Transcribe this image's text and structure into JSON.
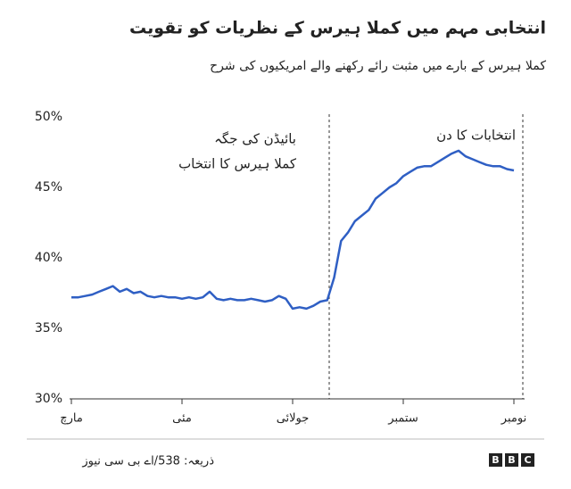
{
  "chart_data": {
    "type": "line",
    "title": "انتخابی مہم میں کملا ہیرس کے نظریات کو تقویت",
    "subtitle": "کملا ہیرس کے بارے میں مثبت رائے رکھنے والے امریکیوں کی شرح",
    "annotations": [
      "بائیڈن کی جگہ",
      "کملا ہیرس کا انتخاب",
      "انتخابات کا دن"
    ],
    "source": "ذریعہ: 538/اے بی سی نیوز",
    "logo": [
      "B",
      "B",
      "C"
    ],
    "categories": [
      "مارچ",
      null,
      null,
      null,
      null,
      null,
      null,
      null,
      null,
      null,
      null,
      null,
      null,
      null,
      null,
      null,
      "مئی",
      null,
      null,
      null,
      null,
      null,
      null,
      null,
      null,
      null,
      null,
      null,
      null,
      null,
      null,
      null,
      "جولائی",
      null,
      null,
      null,
      null,
      null,
      null,
      null,
      null,
      null,
      null,
      null,
      null,
      null,
      null,
      null,
      "ستمبر",
      null,
      null,
      null,
      null,
      null,
      null,
      null,
      null,
      null,
      null,
      null,
      null,
      null,
      null,
      null,
      "نومبر"
    ],
    "series": [
      {
        "color": "#2f5fc4",
        "values": [
          37.2,
          37.2,
          37.3,
          37.4,
          37.6,
          37.8,
          38.0,
          37.6,
          37.8,
          37.5,
          37.6,
          37.3,
          37.2,
          37.3,
          37.2,
          37.2,
          37.1,
          37.2,
          37.1,
          37.2,
          37.6,
          37.1,
          37.0,
          37.1,
          37.0,
          37.0,
          37.1,
          37.0,
          36.9,
          37.0,
          37.3,
          37.1,
          36.4,
          36.5,
          36.4,
          36.6,
          36.9,
          37.0,
          38.6,
          41.2,
          41.8,
          42.6,
          43.0,
          43.4,
          44.2,
          44.6,
          45.0,
          45.3,
          45.8,
          46.1,
          46.4,
          46.5,
          46.5,
          46.8,
          47.1,
          47.4,
          47.6,
          47.2,
          47.0,
          46.8,
          46.6,
          46.5,
          46.5,
          46.3,
          46.2
        ]
      }
    ],
    "ylim": [
      30,
      50
    ],
    "yticks": [
      {
        "value": 30,
        "label": "30%"
      },
      {
        "value": 35,
        "label": "35%"
      },
      {
        "value": 40,
        "label": "40%"
      },
      {
        "value": 45,
        "label": "45%"
      },
      {
        "value": 50,
        "label": "50%"
      }
    ],
    "grid": false
  }
}
